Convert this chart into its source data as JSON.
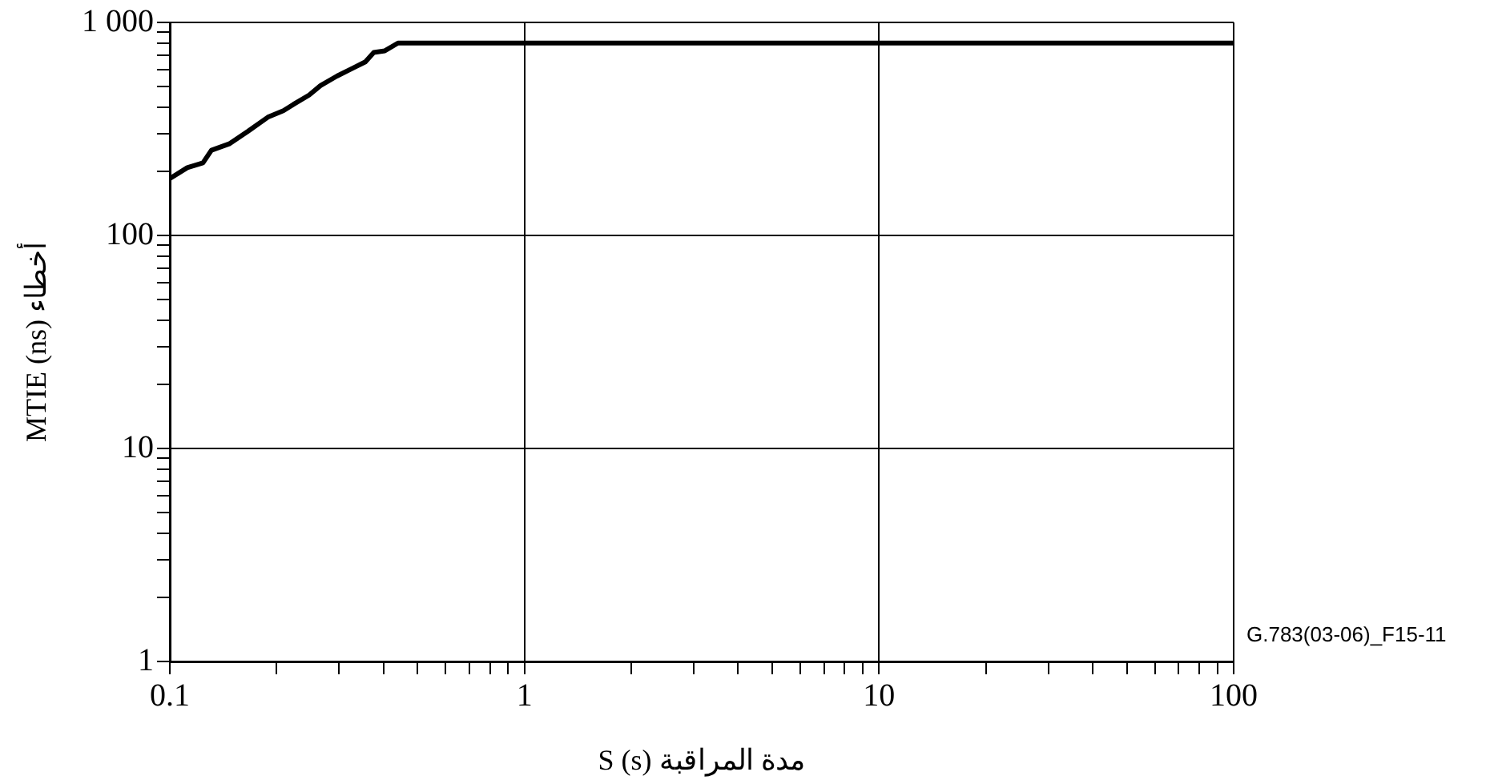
{
  "chart_data": {
    "type": "line",
    "xlabel": "مدة المراقبة S (s)",
    "ylabel": "أخطاء MTIE (ns)",
    "annotations": [
      "G.783(03-06)_F15-11"
    ],
    "x": [
      0.1,
      0.112,
      0.124,
      0.131,
      0.147,
      0.166,
      0.189,
      0.209,
      0.223,
      0.247,
      0.266,
      0.296,
      0.328,
      0.356,
      0.376,
      0.404,
      0.44,
      100
    ],
    "series": [
      {
        "color": "#000000",
        "values": [
          185,
          208,
          219,
          251,
          269,
          308,
          359,
          385,
          412,
          456,
          505,
          560,
          610,
          653,
          723,
          736,
          800,
          800
        ]
      }
    ],
    "log": "xy",
    "xlim": [
      0.1,
      100
    ],
    "ylim": [
      1,
      1000
    ],
    "xticks": [
      0.1,
      {
        "value": 0.2,
        "label": null
      },
      {
        "value": 0.3,
        "label": null
      },
      {
        "value": 0.4,
        "label": null
      },
      {
        "value": 0.5,
        "label": null
      },
      {
        "value": 0.6,
        "label": null
      },
      {
        "value": 0.7,
        "label": null
      },
      {
        "value": 0.8,
        "label": null
      },
      {
        "value": 0.9,
        "label": null
      },
      1,
      {
        "value": 2,
        "label": null
      },
      {
        "value": 3,
        "label": null
      },
      {
        "value": 4,
        "label": null
      },
      {
        "value": 5,
        "label": null
      },
      {
        "value": 6,
        "label": null
      },
      {
        "value": 7,
        "label": null
      },
      {
        "value": 8,
        "label": null
      },
      {
        "value": 9,
        "label": null
      },
      10,
      {
        "value": 20,
        "label": null
      },
      {
        "value": 30,
        "label": null
      },
      {
        "value": 40,
        "label": null
      },
      {
        "value": 50,
        "label": null
      },
      {
        "value": 60,
        "label": null
      },
      {
        "value": 70,
        "label": null
      },
      {
        "value": 80,
        "label": null
      },
      {
        "value": 90,
        "label": null
      },
      100
    ],
    "yticks": [
      1,
      {
        "value": 2,
        "label": null
      },
      {
        "value": 3,
        "label": null
      },
      {
        "value": 4,
        "label": null
      },
      {
        "value": 5,
        "label": null
      },
      {
        "value": 6,
        "label": null
      },
      {
        "value": 7,
        "label": null
      },
      {
        "value": 8,
        "label": null
      },
      {
        "value": 9,
        "label": null
      },
      10,
      {
        "value": 20,
        "label": null
      },
      {
        "value": 30,
        "label": null
      },
      {
        "value": 40,
        "label": null
      },
      {
        "value": 50,
        "label": null
      },
      {
        "value": 60,
        "label": null
      },
      {
        "value": 70,
        "label": null
      },
      {
        "value": 80,
        "label": null
      },
      {
        "value": 90,
        "label": null
      },
      100,
      {
        "value": 200,
        "label": null
      },
      {
        "value": 300,
        "label": null
      },
      {
        "value": 400,
        "label": null
      },
      {
        "value": 500,
        "label": null
      },
      {
        "value": 600,
        "label": null
      },
      {
        "value": 700,
        "label": null
      },
      {
        "value": 800,
        "label": null
      },
      {
        "value": 900,
        "label": null
      },
      {
        "value": 1000,
        "label": "1 000"
      }
    ],
    "grid": true,
    "legend": false,
    "marker": "none",
    "line_style": "solid"
  }
}
